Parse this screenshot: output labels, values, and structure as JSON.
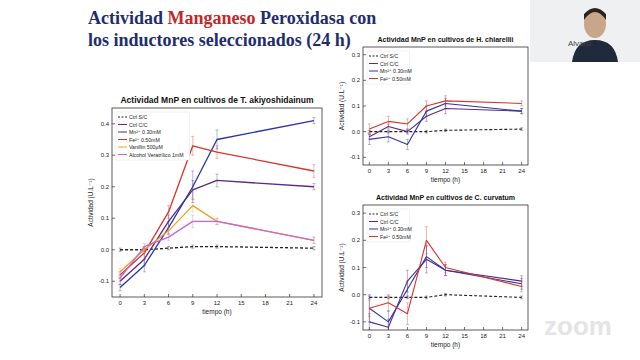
{
  "slide": {
    "title_lines": [
      [
        {
          "text": "Actividad ",
          "color": "#1f2d6e"
        },
        {
          "text": "Manganeso",
          "color": "#c0282a"
        },
        {
          "text": " Peroxidasa con",
          "color": "#1f2d6e"
        }
      ],
      [
        {
          "text": "los inductores seleccionados (24 h)",
          "color": "#1f2d6e"
        }
      ]
    ],
    "speaker": "Alvaro",
    "watermark": "zoom"
  },
  "chart_data": [
    {
      "type": "line",
      "title": "Actividad MnP en cultivos de T. akiyoshidainum",
      "x_label": "tiempo (h)",
      "y_label": "Actividad (U.L⁻¹)",
      "x": [
        0,
        3,
        6,
        9,
        12,
        24
      ],
      "xlim": [
        -1,
        25
      ],
      "xticks": [
        0,
        3,
        6,
        9,
        12,
        15,
        18,
        21,
        24
      ],
      "ylim": [
        -0.15,
        0.45
      ],
      "yticks": [
        -0.1,
        {
          "value": 0,
          "label": "0.0"
        },
        0.1,
        0.2,
        0.3,
        0.4
      ],
      "legend": "upper-left",
      "series": [
        {
          "name": "Ctrl S/C",
          "color": "#222222",
          "line_style": "dashed",
          "values": [
            0,
            0,
            0.005,
            0.01,
            0.01,
            0.005
          ],
          "errors": [
            0.005,
            0.005,
            0.005,
            0.005,
            0.005,
            0.005
          ]
        },
        {
          "name": "Ctrl C/C",
          "color": "#5b2a86",
          "line_style": "solid",
          "values": [
            -0.1,
            -0.03,
            0.09,
            0.19,
            0.22,
            0.2
          ],
          "errors": [
            0.01,
            0.02,
            0.02,
            0.03,
            0.02,
            0.01
          ]
        },
        {
          "name": "Mn²⁺ 0.30mM",
          "color": "#2b35a8",
          "line_style": "solid",
          "values": [
            -0.12,
            -0.05,
            0.07,
            0.2,
            0.35,
            0.41
          ],
          "errors": [
            0.01,
            0.02,
            0.02,
            0.05,
            0.03,
            0.01
          ]
        },
        {
          "name": "Fe²⁺ 0.50mM",
          "color": "#d9342b",
          "line_style": "solid",
          "values": [
            -0.08,
            -0.01,
            0.12,
            0.33,
            0.31,
            0.25
          ],
          "errors": [
            0.01,
            0.02,
            0.02,
            0.03,
            0.02,
            0.02
          ]
        },
        {
          "name": "Vanillin 500μM",
          "color": "#f0a020",
          "line_style": "solid",
          "values": [
            -0.07,
            0.0,
            0.06,
            0.14,
            0.09,
            0.03
          ],
          "errors": [
            0.01,
            0.01,
            0.01,
            0.02,
            0.01,
            0.01
          ]
        },
        {
          "name": "Alcohol Veratrílico 1mM",
          "color": "#c864d8",
          "line_style": "solid",
          "values": [
            -0.09,
            0.01,
            0.04,
            0.09,
            0.09,
            0.03
          ],
          "errors": [
            0.01,
            0.01,
            0.01,
            0.02,
            0.01,
            0.01
          ]
        }
      ]
    },
    {
      "type": "line",
      "title": "Actividad MnP en cultivos de H. chiarellii",
      "x_label": "tiempo (h)",
      "y_label": "Actividad (U.L⁻¹)",
      "x": [
        0,
        3,
        6,
        9,
        12,
        24
      ],
      "xlim": [
        -1,
        25
      ],
      "xticks": [
        0,
        3,
        6,
        9,
        12,
        15,
        18,
        21,
        24
      ],
      "ylim": [
        -0.13,
        0.33
      ],
      "yticks": [
        -0.1,
        {
          "value": 0,
          "label": "0.0"
        },
        0.1,
        0.2,
        0.3
      ],
      "legend": "upper-left",
      "series": [
        {
          "name": "Ctrl S/C",
          "color": "#222222",
          "line_style": "dashed",
          "values": [
            0,
            0,
            0,
            0,
            0.005,
            0.01
          ],
          "errors": [
            0.005,
            0.005,
            0.005,
            0.005,
            0.005,
            0.005
          ]
        },
        {
          "name": "Ctrl C/C",
          "color": "#5b2a86",
          "line_style": "solid",
          "values": [
            -0.02,
            0.02,
            0,
            0.06,
            0.09,
            0.08
          ],
          "errors": [
            0.01,
            0.01,
            0.01,
            0.02,
            0.02,
            0.01
          ]
        },
        {
          "name": "Mn²⁺ 0.30mM",
          "color": "#2b35a8",
          "line_style": "solid",
          "values": [
            -0.03,
            -0.02,
            -0.05,
            0.08,
            0.11,
            0.08
          ],
          "errors": [
            0.02,
            0.02,
            0.02,
            0.02,
            0.02,
            0.01
          ]
        },
        {
          "name": "Fe²⁺ 0.50mM",
          "color": "#d9342b",
          "line_style": "solid",
          "values": [
            0.01,
            0.04,
            0.03,
            0.1,
            0.12,
            0.11
          ],
          "errors": [
            0.02,
            0.02,
            0.02,
            0.02,
            0.02,
            0.01
          ]
        }
      ]
    },
    {
      "type": "line",
      "title": "Actividad MnP en cultivos de C. curvatum",
      "x_label": "tiempo (h)",
      "y_label": "Actividad (U.L⁻¹)",
      "x": [
        0,
        3,
        6,
        9,
        12,
        24
      ],
      "xlim": [
        -1,
        25
      ],
      "xticks": [
        0,
        3,
        6,
        9,
        12,
        15,
        18,
        21,
        24
      ],
      "ylim": [
        -0.13,
        0.33
      ],
      "yticks": [
        -0.1,
        {
          "value": 0,
          "label": "0.0"
        },
        0.1,
        0.2,
        0.3
      ],
      "legend": "upper-left",
      "series": [
        {
          "name": "Ctrl S/C",
          "color": "#222222",
          "line_style": "dashed",
          "values": [
            -0.01,
            -0.01,
            -0.01,
            -0.01,
            0,
            -0.01
          ],
          "errors": [
            0.005,
            0.005,
            0.005,
            0.005,
            0.005,
            0.005
          ]
        },
        {
          "name": "Ctrl C/C",
          "color": "#5b2a86",
          "line_style": "solid",
          "values": [
            -0.1,
            -0.12,
            0.05,
            0.13,
            0.09,
            0.05
          ],
          "errors": [
            0.03,
            0.03,
            0.04,
            0.05,
            0.02,
            0.02
          ]
        },
        {
          "name": "Mn²⁺ 0.30mM",
          "color": "#2b35a8",
          "line_style": "solid",
          "values": [
            -0.05,
            -0.1,
            0.02,
            0.14,
            0.09,
            0.04
          ],
          "errors": [
            0.05,
            0.04,
            0.03,
            0.04,
            0.02,
            0.02
          ]
        },
        {
          "name": "Fe²⁺ 0.50mM",
          "color": "#d9342b",
          "line_style": "solid",
          "values": [
            -0.05,
            -0.03,
            -0.07,
            0.2,
            0.1,
            0.03
          ],
          "errors": [
            0.03,
            0.03,
            0.04,
            0.05,
            0.02,
            0.02
          ]
        }
      ]
    }
  ]
}
